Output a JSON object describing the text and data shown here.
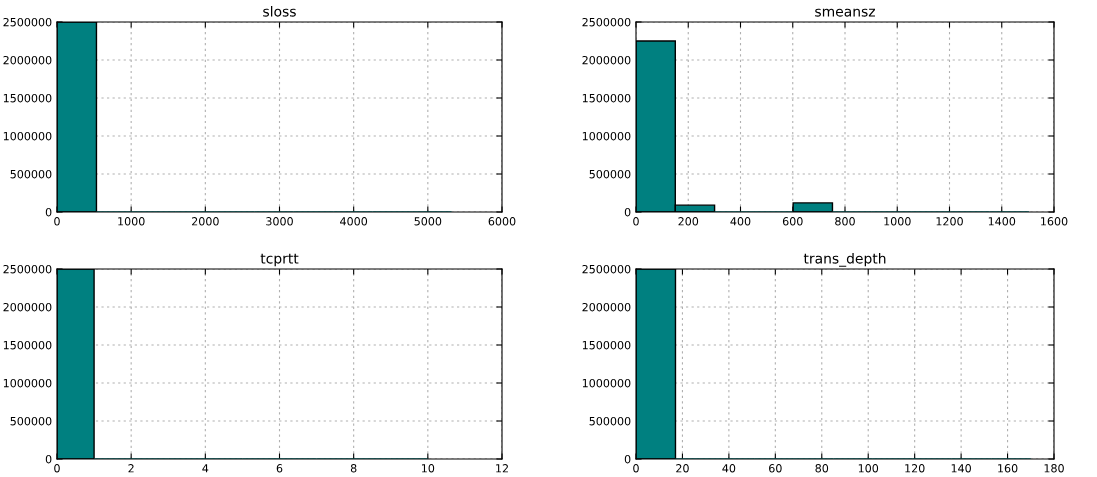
{
  "chart_data": [
    {
      "type": "histogram",
      "title": "sloss",
      "bins": [
        0,
        532,
        1064,
        1596,
        2128,
        2660,
        3192,
        3724,
        4256,
        4788,
        5320
      ],
      "values": [
        2500000,
        0,
        0,
        0,
        0,
        0,
        0,
        0,
        0,
        0
      ],
      "color": "#008080",
      "xlim": [
        0,
        6000
      ],
      "xticks": [
        0,
        1000,
        2000,
        3000,
        4000,
        5000,
        6000
      ],
      "ylim": [
        0,
        2500000
      ],
      "yticks": [
        0,
        500000,
        1000000,
        1500000,
        2000000,
        2500000
      ],
      "grid": true,
      "legend": false
    },
    {
      "type": "histogram",
      "title": "smeansz",
      "bins": [
        0,
        150.4,
        300.8,
        451.2,
        601.6,
        752,
        902.4,
        1052.8,
        1203.2,
        1353.6,
        1504
      ],
      "values": [
        2250000,
        90000,
        0,
        0,
        120000,
        0,
        0,
        0,
        0,
        0
      ],
      "color": "#008080",
      "xlim": [
        0,
        1600
      ],
      "xticks": [
        0,
        200,
        400,
        600,
        800,
        1000,
        1200,
        1400,
        1600
      ],
      "ylim": [
        0,
        2500000
      ],
      "yticks": [
        0,
        500000,
        1000000,
        1500000,
        2000000,
        2500000
      ],
      "grid": true,
      "legend": false
    },
    {
      "type": "histogram",
      "title": "tcprtt",
      "bins": [
        0,
        1,
        2,
        3,
        4,
        5,
        6,
        7,
        8,
        9,
        10
      ],
      "values": [
        2500000,
        0,
        0,
        0,
        0,
        0,
        0,
        0,
        0,
        0
      ],
      "color": "#008080",
      "xlim": [
        0,
        12
      ],
      "xticks": [
        0,
        2,
        4,
        6,
        8,
        10,
        12
      ],
      "ylim": [
        0,
        2500000
      ],
      "yticks": [
        0,
        500000,
        1000000,
        1500000,
        2000000,
        2500000
      ],
      "grid": true,
      "legend": false
    },
    {
      "type": "histogram",
      "title": "trans_depth",
      "bins": [
        0,
        17,
        34,
        51,
        68,
        85,
        102,
        119,
        136,
        153,
        170
      ],
      "values": [
        2500000,
        0,
        0,
        0,
        0,
        0,
        0,
        0,
        0,
        0
      ],
      "color": "#008080",
      "xlim": [
        0,
        180
      ],
      "xticks": [
        0,
        20,
        40,
        60,
        80,
        100,
        120,
        140,
        160,
        180
      ],
      "ylim": [
        0,
        2500000
      ],
      "yticks": [
        0,
        500000,
        1000000,
        1500000,
        2000000,
        2500000
      ],
      "grid": true,
      "legend": false
    }
  ]
}
